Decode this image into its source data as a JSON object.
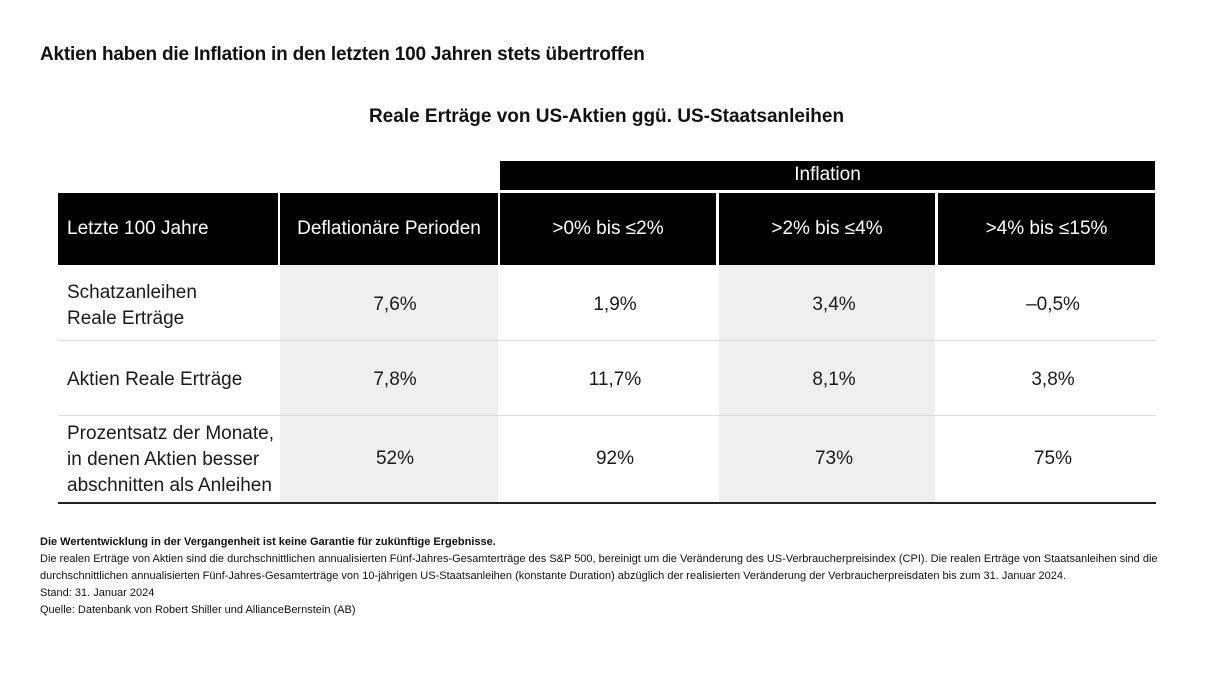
{
  "headline": "Aktien haben die Inflation in den letzten 100 Jahren stets übertroffen",
  "chart_data": {
    "type": "table",
    "title": "Reale Erträge von US-Aktien ggü. US-Staatsanleihen",
    "group_header": "Inflation",
    "columns": [
      "Letzte 100 Jahre",
      "Deflationäre Perioden",
      ">0% bis ≤2%",
      ">2% bis ≤4%",
      ">4% bis ≤15%"
    ],
    "rows": [
      {
        "label_lines": [
          "Schatzanleihen",
          "Reale Erträge"
        ],
        "values": [
          "7,6%",
          "1,9%",
          "3,4%",
          "–0,5%"
        ]
      },
      {
        "label_lines": [
          "Aktien Reale Erträge"
        ],
        "values": [
          "7,8%",
          "11,7%",
          "8,1%",
          "3,8%"
        ]
      },
      {
        "label_lines": [
          "Prozentsatz der Monate,",
          "in denen Aktien besser",
          "abschnitten als Anleihen"
        ],
        "values": [
          "52%",
          "92%",
          "73%",
          "75%"
        ]
      }
    ]
  },
  "footnotes": {
    "disclaimer": "Die Wertentwicklung in der Vergangenheit ist keine Garantie für zukünftige Ergebnisse.",
    "explanation": "Die realen Erträge von Aktien sind die durchschnittlichen annualisierten Fünf-Jahres-Gesamterträge des S&P 500, bereinigt um die Veränderung des US-Verbraucherpreisindex (CPI). Die realen Erträge von Staatsanleihen sind die durchschnittlichen annualisierten Fünf-Jahres-Gesamterträge von 10-jährigen US-Staatsanleihen (konstante Duration) abzüglich der realisierten Veränderung der Verbraucherpreisdaten bis zum 31. Januar 2024.",
    "as_of": "Stand: 31. Januar 2024",
    "source": "Quelle: Datenbank von Robert Shiller und AllianceBernstein (AB)"
  }
}
